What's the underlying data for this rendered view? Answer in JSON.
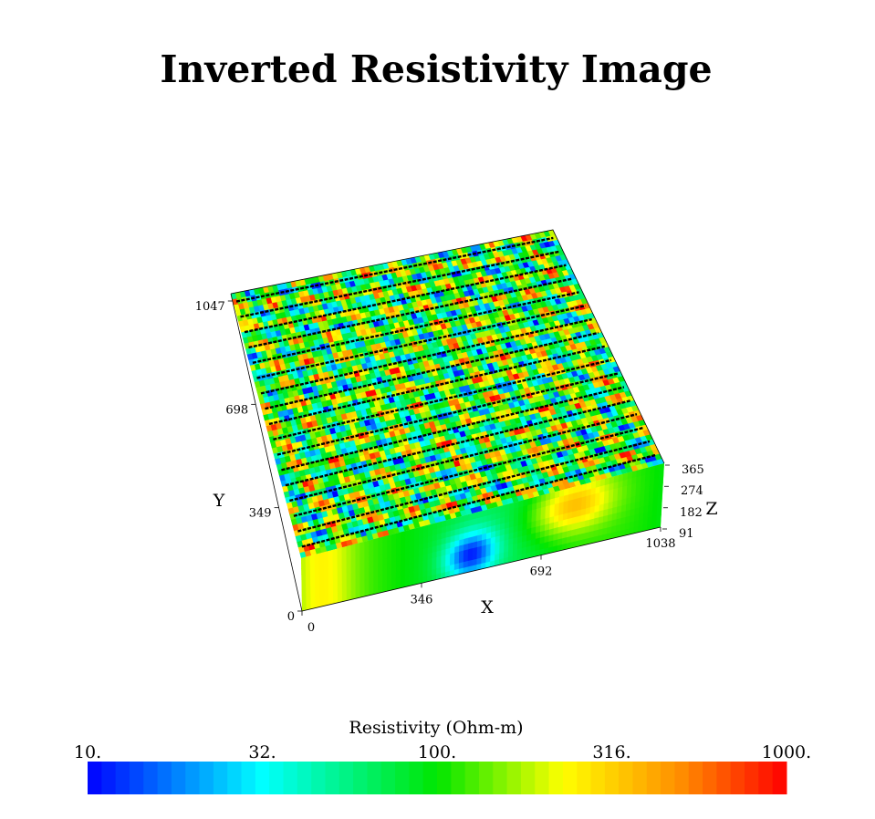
{
  "title": "Inverted Resistivity Image",
  "axes": {
    "x": {
      "label": "X",
      "ticks": [
        0,
        346,
        692,
        1038
      ]
    },
    "y": {
      "label": "Y",
      "ticks": [
        0,
        349,
        698,
        1047
      ]
    },
    "z": {
      "label": "Z",
      "ticks": [
        91,
        182,
        274,
        365
      ]
    }
  },
  "colorbar": {
    "title": "Resistivity (Ohm-m)",
    "labels": [
      "10.",
      "32.",
      "100.",
      "316.",
      "1000."
    ]
  }
}
